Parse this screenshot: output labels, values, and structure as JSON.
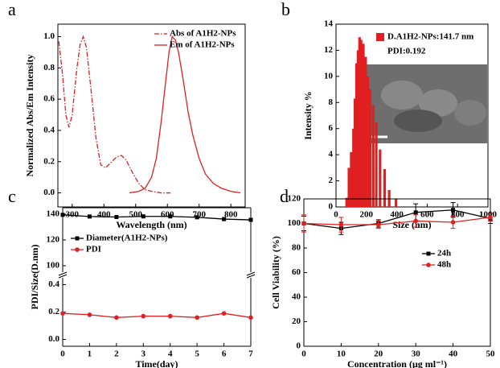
{
  "chart_data": [
    {
      "type": "line",
      "label": "a",
      "xlabel": "Wavelength (nm)",
      "ylabel": "Normalized Abs/Em Intensity",
      "xlim": [
        255,
        845
      ],
      "xticks": [
        300,
        400,
        500,
        600,
        700,
        800
      ],
      "ylim": [
        -0.09,
        1.08
      ],
      "yticks": [
        {
          "value": 0,
          "label": "0.0"
        },
        0.2,
        0.4,
        0.6,
        0.8,
        {
          "value": 1,
          "label": "1.0"
        }
      ],
      "series": [
        {
          "name": "Abs of A1H2-NPs",
          "color": "#e02020",
          "linestyle": "dashdot",
          "x": [
            258,
            270,
            280,
            290,
            300,
            315,
            325,
            335,
            345,
            360,
            375,
            390,
            405,
            420,
            440,
            455,
            470,
            490,
            510,
            530,
            550,
            580,
            610
          ],
          "values": [
            0.97,
            0.75,
            0.5,
            0.42,
            0.5,
            0.8,
            0.95,
            1.0,
            0.93,
            0.65,
            0.35,
            0.18,
            0.16,
            0.19,
            0.23,
            0.24,
            0.21,
            0.13,
            0.06,
            0.02,
            0.01,
            0,
            0
          ]
        },
        {
          "name": "Em of A1H2-NPs",
          "color": "#e02020",
          "linestyle": "solid",
          "x": [
            480,
            510,
            530,
            550,
            565,
            580,
            595,
            605,
            615,
            625,
            635,
            650,
            665,
            680,
            700,
            720,
            745,
            770,
            800,
            830
          ],
          "values": [
            0,
            0.01,
            0.03,
            0.1,
            0.22,
            0.45,
            0.72,
            0.9,
            1.0,
            0.98,
            0.9,
            0.72,
            0.52,
            0.37,
            0.22,
            0.12,
            0.06,
            0.03,
            0.01,
            0
          ]
        }
      ]
    },
    {
      "type": "histogram",
      "label": "b",
      "xlabel": "Size (nm)",
      "ylabel": "Intensity %",
      "xlim": [
        0,
        1000
      ],
      "xticks": [
        0,
        200,
        400,
        600,
        800,
        1000
      ],
      "ylim": [
        0,
        14
      ],
      "yticks": [
        0,
        2,
        4,
        6,
        8,
        10,
        12,
        14
      ],
      "color": "#e02020",
      "series": [
        {
          "name": "D.A1H2-NPs:141.7 nm",
          "color": "#e02020",
          "x": [
            70,
            85,
            100,
            115,
            125,
            135,
            145,
            155,
            165,
            180,
            195,
            210,
            225,
            245,
            265,
            290,
            320,
            350,
            395
          ],
          "values": [
            0.7,
            3,
            4.2,
            6,
            8.3,
            11,
            12,
            13,
            12.8,
            12.5,
            11.5,
            10,
            9,
            7.8,
            6.5,
            4.4,
            2.9,
            1.3,
            0.6
          ]
        }
      ],
      "annotation": "PDI:0.192"
    },
    {
      "type": "line",
      "label": "c",
      "xlabel": "Time(day)",
      "ylabel": "PDI/Size(D.nm)",
      "x": [
        0,
        1,
        2,
        3,
        4,
        5,
        6,
        7
      ],
      "xlim": [
        0,
        7
      ],
      "xticks": [
        0,
        1,
        2,
        3,
        4,
        5,
        6,
        7
      ],
      "ylim": [
        -0.05,
        0.45
      ],
      "yticks": [
        {
          "value": 0,
          "label": "0.0"
        },
        0.2,
        0.4
      ],
      "y2lim": [
        95,
        145
      ],
      "y2ticks": [
        100,
        120,
        140
      ],
      "series": [
        {
          "name": "Diameter(A1H2-NPs)",
          "color": "#000000",
          "marker": "square",
          "axis": "y2",
          "values": [
            139.5,
            138.2,
            137.8,
            138.3,
            138.3,
            137.6,
            136.2,
            135.6
          ]
        },
        {
          "name": "PDI",
          "color": "#e02020",
          "marker": "circle",
          "values": [
            0.19,
            0.18,
            0.16,
            0.17,
            0.17,
            0.16,
            0.19,
            0.16
          ]
        }
      ]
    },
    {
      "type": "line",
      "label": "d",
      "xlabel": "Concentration (μg ml⁻¹)",
      "ylabel": "Cell Viability (%)",
      "x": [
        0,
        10,
        20,
        30,
        40,
        50
      ],
      "xlim": [
        0,
        50
      ],
      "xticks": [
        0,
        10,
        20,
        30,
        40,
        50
      ],
      "ylim": [
        0,
        120
      ],
      "yticks": [
        0,
        20,
        40,
        60,
        80,
        100,
        120
      ],
      "series": [
        {
          "name": "24h",
          "color": "#000000",
          "marker": "square",
          "values": [
            100,
            96,
            100,
            109,
            111,
            104
          ],
          "errors": [
            6,
            5,
            3,
            7,
            6,
            4
          ]
        },
        {
          "name": "48h",
          "color": "#e02020",
          "marker": "circle",
          "values": [
            100,
            99,
            99,
            102,
            101,
            105
          ],
          "errors": [
            7,
            6,
            3,
            5,
            5,
            3
          ]
        }
      ]
    }
  ]
}
